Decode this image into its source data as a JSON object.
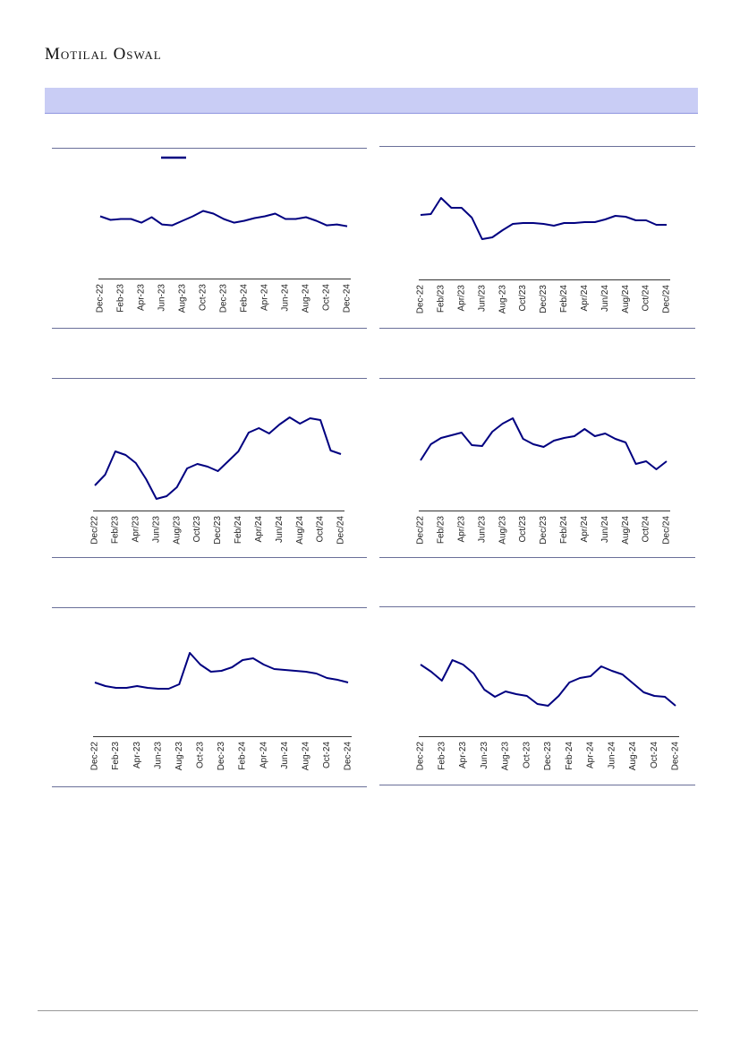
{
  "header": {
    "brand": "Motilal Oswal"
  },
  "chart_data": [
    {
      "type": "line",
      "color": "#000080",
      "ylim": [
        0,
        140
      ],
      "categories": [
        "Dec-22",
        null,
        "Feb-23",
        null,
        "Apr-23",
        null,
        "Jun-23",
        null,
        "Aug-23",
        null,
        "Oct-23",
        null,
        "Dec-23",
        null,
        "Feb-24",
        null,
        "Apr-24",
        null,
        "Jun-24",
        null,
        "Aug-24",
        null,
        "Oct-24",
        null,
        "Dec-24"
      ],
      "values": [
        69,
        65,
        66,
        66,
        62,
        68,
        60,
        59,
        64,
        69,
        75,
        72,
        66,
        62,
        64,
        67,
        69,
        72,
        66,
        66,
        68,
        64,
        59,
        60,
        58
      ]
    },
    {
      "type": "line",
      "color": "#000080",
      "ylim": [
        0,
        147
      ],
      "categories": [
        "Dec-22",
        null,
        "Feb/23",
        null,
        "Apr/23",
        null,
        "Jun/23",
        null,
        "Aug-23",
        null,
        "Oct/23",
        null,
        "Dec/23",
        null,
        "Feb/24",
        null,
        "Apr/24",
        null,
        "Jun/24",
        null,
        "Aug/24",
        null,
        "Oct/24",
        null,
        "Dec/24"
      ],
      "values": [
        72,
        73,
        91,
        80,
        80,
        69,
        45,
        47,
        55,
        62,
        63,
        63,
        62,
        60,
        63,
        63,
        64,
        64,
        67,
        71,
        70,
        66,
        66,
        61,
        61
      ]
    },
    {
      "type": "line",
      "color": "#000080",
      "ylim": [
        0,
        148
      ],
      "categories": [
        "Dec/22",
        null,
        "Feb/23",
        null,
        "Apr/23",
        null,
        "Jun/23",
        null,
        "Aug/23",
        null,
        "Oct/23",
        null,
        "Dec/23",
        null,
        "Feb/24",
        null,
        "Apr/24",
        null,
        "Jun/24",
        null,
        "Aug/24",
        null,
        "Oct/24",
        null,
        "Dec/24"
      ],
      "values": [
        28,
        40,
        66,
        62,
        53,
        35,
        13,
        16,
        26,
        47,
        52,
        49,
        44,
        55,
        66,
        87,
        92,
        86,
        96,
        104,
        97,
        103,
        101,
        67,
        63
      ]
    },
    {
      "type": "line",
      "color": "#000080",
      "ylim": [
        0,
        148
      ],
      "categories": [
        "Dec/22",
        null,
        "Feb/23",
        null,
        "Apr/23",
        null,
        "Jun/23",
        null,
        "Aug/23",
        null,
        "Oct/23",
        null,
        "Dec/23",
        null,
        "Feb/24",
        null,
        "Apr/24",
        null,
        "Jun/24",
        null,
        "Aug/24",
        null,
        "Oct/24",
        null,
        "Dec/24"
      ],
      "values": [
        56,
        74,
        81,
        84,
        87,
        73,
        72,
        88,
        97,
        103,
        80,
        74,
        71,
        78,
        81,
        83,
        91,
        83,
        86,
        80,
        76,
        52,
        55,
        46,
        55
      ]
    },
    {
      "type": "line",
      "color": "#000080",
      "ylim": [
        0,
        144
      ],
      "categories": [
        "Dec-22",
        null,
        "Feb-23",
        null,
        "Apr-23",
        null,
        "Jun-23",
        null,
        "Aug-23",
        null,
        "Oct-23",
        null,
        "Dec-23",
        null,
        "Feb-24",
        null,
        "Apr-24",
        null,
        "Jun-24",
        null,
        "Aug-24",
        null,
        "Oct-24",
        null,
        "Dec-24"
      ],
      "values": [
        60,
        56,
        54,
        54,
        56,
        54,
        53,
        53,
        58,
        93,
        80,
        72,
        73,
        77,
        85,
        87,
        80,
        75,
        74,
        73,
        72,
        70,
        65,
        63,
        60
      ]
    },
    {
      "type": "line",
      "color": "#000080",
      "ylim": [
        0,
        144
      ],
      "categories": [
        "Dec-22",
        null,
        "Feb-23",
        null,
        "Apr-23",
        null,
        "Jun-23",
        null,
        "Aug-23",
        null,
        "Oct-23",
        null,
        "Dec-23",
        null,
        "Feb-24",
        null,
        "Apr-24",
        null,
        "Jun-24",
        null,
        "Aug-24",
        null,
        "Oct-24",
        null,
        "Dec-24"
      ],
      "values": [
        80,
        72,
        62,
        85,
        80,
        70,
        52,
        44,
        50,
        47,
        45,
        36,
        34,
        45,
        60,
        65,
        67,
        78,
        73,
        69,
        59,
        49,
        45,
        44,
        34
      ]
    }
  ]
}
